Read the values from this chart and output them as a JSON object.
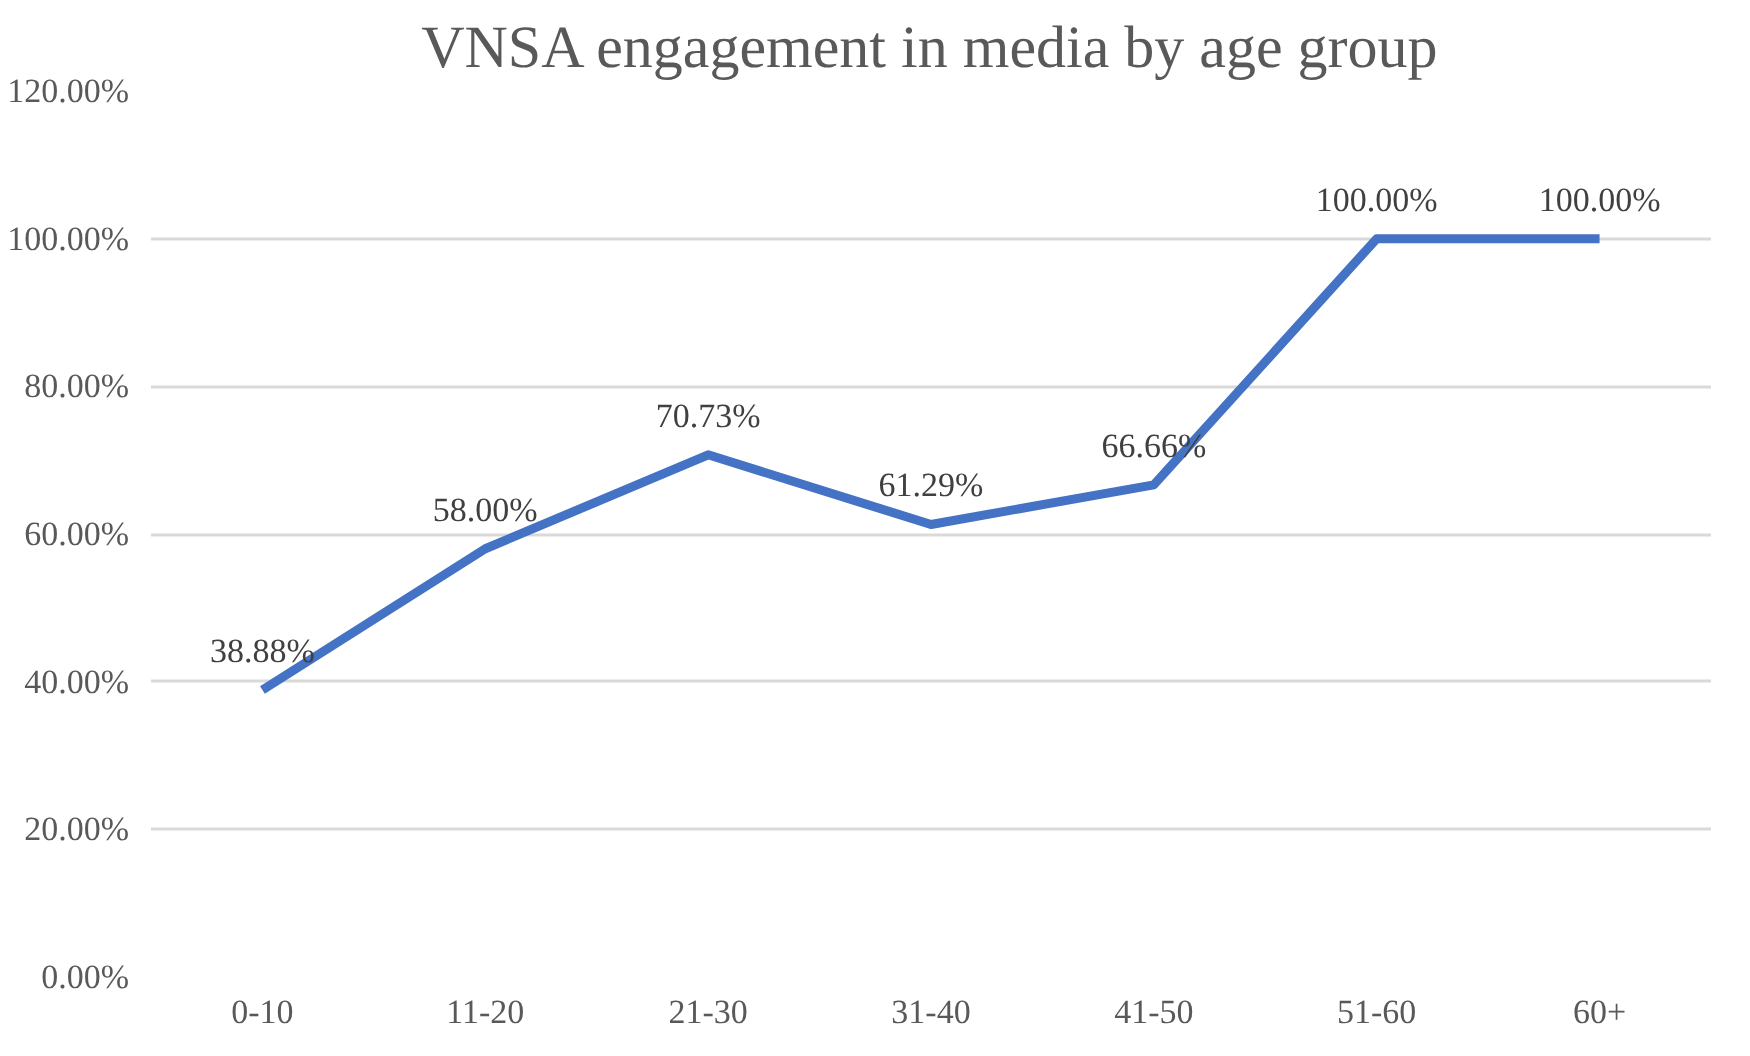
{
  "chart_data": {
    "type": "line",
    "title": "VNSA engagement in media by age group",
    "categories": [
      "0-10",
      "11-20",
      "21-30",
      "31-40",
      "41-50",
      "51-60",
      "60+"
    ],
    "series": [
      {
        "color": "#4472c4",
        "values": [
          38.88,
          58.0,
          70.73,
          61.29,
          66.66,
          100,
          100
        ]
      }
    ],
    "value_labels": [
      "38.88%",
      "58.00%",
      "70.73%",
      "61.29%",
      "66.66%",
      "100.00%",
      "100.00%"
    ],
    "ylim": [
      0,
      120
    ],
    "yticks": [
      {
        "value": 0,
        "label": "0.00%"
      },
      {
        "value": 20,
        "label": "20.00%"
      },
      {
        "value": 40,
        "label": "40.00%"
      },
      {
        "value": 60,
        "label": "60.00%"
      },
      {
        "value": 80,
        "label": "80.00%"
      },
      {
        "value": 100,
        "label": "100.00%"
      },
      {
        "value": 120,
        "label": "120.00%"
      }
    ],
    "grid": "y",
    "marker": "none",
    "line_style": "solid"
  }
}
